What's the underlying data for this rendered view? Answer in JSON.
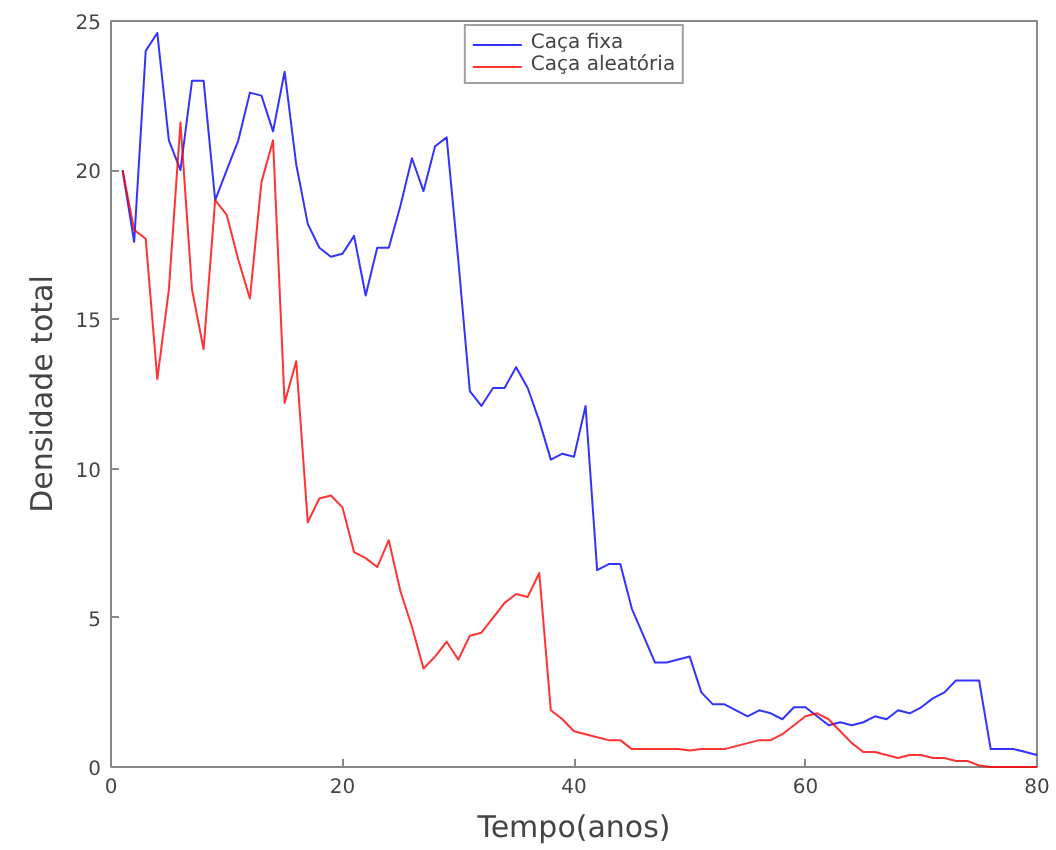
{
  "chart_data": {
    "type": "line",
    "xlabel": "Tempo(anos)",
    "ylabel": "Densidade total",
    "x": [
      1,
      2,
      3,
      4,
      5,
      6,
      7,
      8,
      9,
      10,
      11,
      12,
      13,
      14,
      15,
      16,
      17,
      18,
      19,
      20,
      21,
      22,
      23,
      24,
      25,
      26,
      27,
      28,
      29,
      30,
      31,
      32,
      33,
      34,
      35,
      36,
      37,
      38,
      39,
      40,
      41,
      42,
      43,
      44,
      45,
      46,
      47,
      48,
      49,
      50,
      51,
      52,
      53,
      54,
      55,
      56,
      57,
      58,
      59,
      60,
      61,
      62,
      63,
      64,
      65,
      66,
      67,
      68,
      69,
      70,
      71,
      72,
      73,
      74,
      75,
      76,
      77,
      78,
      79,
      80
    ],
    "series": [
      {
        "name": "Caça fixa",
        "color": "#0000ff",
        "values": [
          20,
          17.6,
          24,
          24.6,
          21,
          20,
          23,
          23,
          19,
          20,
          21,
          22.6,
          22.5,
          21.3,
          23.3,
          20.2,
          18.2,
          17.4,
          17.1,
          17.2,
          17.8,
          15.8,
          17.4,
          17.4,
          18.8,
          20.4,
          19.3,
          20.8,
          21.1,
          17,
          12.6,
          12.1,
          12.7,
          12.7,
          13.4,
          12.7,
          11.6,
          10.3,
          10.5,
          10.4,
          12.1,
          6.6,
          6.8,
          6.8,
          5.3,
          4.4,
          3.5,
          3.5,
          3.6,
          3.7,
          2.5,
          2.1,
          2.1,
          1.9,
          1.7,
          1.9,
          1.8,
          1.6,
          2.0,
          2.0,
          1.7,
          1.4,
          1.5,
          1.4,
          1.5,
          1.7,
          1.6,
          1.9,
          1.8,
          2.0,
          2.3,
          2.5,
          2.9,
          2.9,
          2.9,
          0.6,
          0.6,
          0.6,
          0.5,
          0.4
        ]
      },
      {
        "name": "Caça aleatória",
        "color": "#ff0000",
        "values": [
          20,
          18,
          17.7,
          13,
          16,
          21.6,
          16,
          14,
          19,
          18.5,
          17,
          15.7,
          19.6,
          21,
          12.2,
          13.6,
          8.2,
          9,
          9.1,
          8.7,
          7.2,
          7,
          6.7,
          7.6,
          5.9,
          4.7,
          3.3,
          3.7,
          4.2,
          3.6,
          4.4,
          4.5,
          5,
          5.5,
          5.8,
          5.7,
          6.5,
          1.9,
          1.6,
          1.2,
          1.1,
          1.0,
          0.9,
          0.9,
          0.6,
          0.6,
          0.6,
          0.6,
          0.6,
          0.55,
          0.6,
          0.6,
          0.6,
          0.7,
          0.8,
          0.9,
          0.9,
          1.1,
          1.4,
          1.7,
          1.8,
          1.6,
          1.2,
          0.8,
          0.5,
          0.5,
          0.4,
          0.3,
          0.4,
          0.4,
          0.3,
          0.3,
          0.2,
          0.2,
          0.05,
          0,
          0,
          0,
          0,
          0
        ]
      }
    ],
    "xlim": [
      0,
      80
    ],
    "ylim": [
      0,
      25
    ],
    "xticks": [
      0,
      20,
      40,
      60,
      80
    ],
    "yticks": [
      0,
      5,
      10,
      15,
      20,
      25
    ],
    "legend": "top",
    "grid": false,
    "line_style": "solid"
  }
}
